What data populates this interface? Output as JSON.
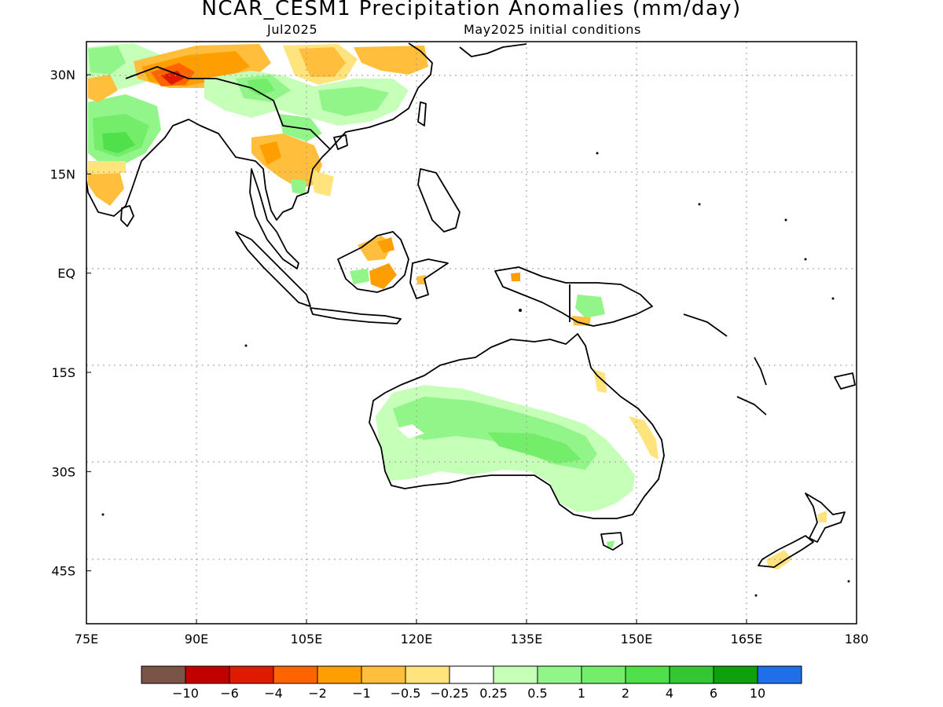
{
  "title": "NCAR_CESM1 Precipitation Anomalies (mm/day)",
  "subtitle_left": "Jul2025",
  "subtitle_right": "May2025 initial conditions",
  "map": {
    "lon_range": [
      75,
      180
    ],
    "lat_range": [
      -53,
      35
    ],
    "gridlines": "dotted",
    "lon_ticks": [
      {
        "value": 75,
        "label": "75E"
      },
      {
        "value": 90,
        "label": "90E"
      },
      {
        "value": 105,
        "label": "105E"
      },
      {
        "value": 120,
        "label": "120E"
      },
      {
        "value": 135,
        "label": "135E"
      },
      {
        "value": 150,
        "label": "150E"
      },
      {
        "value": 165,
        "label": "165E"
      },
      {
        "value": 180,
        "label": "180"
      }
    ],
    "lat_ticks": [
      {
        "value": 30,
        "label": "30N"
      },
      {
        "value": 15,
        "label": "15N"
      },
      {
        "value": 0,
        "label": "EQ"
      },
      {
        "value": -15,
        "label": "15S"
      },
      {
        "value": -30,
        "label": "30S"
      },
      {
        "value": -45,
        "label": "45S"
      }
    ]
  },
  "colorbar": {
    "colors": [
      "#7a5547",
      "#c30000",
      "#e01a00",
      "#ff6400",
      "#ff9e00",
      "#ffbe3c",
      "#ffe37d",
      "#ffffff",
      "#c6ffb8",
      "#92f58a",
      "#74ee6a",
      "#4fe04b",
      "#35c633",
      "#0fa00e",
      "#1f6fe8"
    ],
    "labels": [
      "-10",
      "-6",
      "-4",
      "-2",
      "-1",
      "-0.5",
      "-0.25",
      "0.25",
      "0.5",
      "1",
      "2",
      "4",
      "6",
      "10"
    ]
  }
}
